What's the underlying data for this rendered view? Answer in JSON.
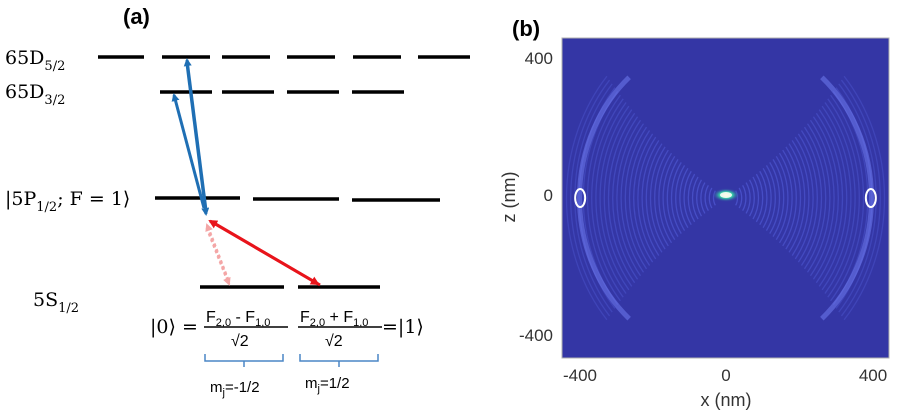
{
  "panel_a": {
    "label": "(a)",
    "levels": {
      "d52": {
        "base": "65D",
        "sub": "5/2"
      },
      "d32": {
        "base": "65D",
        "sub": "3/2"
      },
      "p12": {
        "pre": "|5P",
        "sub": "1/2",
        "post": "; F = 1⟩"
      },
      "s12": {
        "base": "5S",
        "sub": "1/2"
      }
    },
    "state0": {
      "ket": "|0⟩ =",
      "numerator": {
        "a": "F",
        "a_sub": "2,0",
        "op": " - ",
        "b": "F",
        "b_sub": "1,0"
      },
      "denominator": "√2"
    },
    "state1": {
      "ket": "=|1⟩",
      "numerator": {
        "a": "F",
        "a_sub": "2,0",
        "op": " + ",
        "b": "F",
        "b_sub": "1,0"
      },
      "denominator": "√2"
    },
    "mj_left": {
      "base": "m",
      "sub": "j",
      "rest": "=-1/2"
    },
    "mj_right": {
      "base": "m",
      "sub": "j",
      "rest": "=1/2"
    },
    "colors": {
      "blue_arrow": "#1f6fb4",
      "red_arrow": "#e8141b",
      "pink_arrow": "#f4a6a6",
      "bracket": "#4a86c5"
    }
  },
  "panel_b": {
    "label": "(b)",
    "colors": {
      "background": "#3436a5",
      "wave": "#5a66e6",
      "ring": "#ffffff"
    },
    "chart_data": {
      "type": "heatmap",
      "xlabel": "x (nm)",
      "ylabel": "z (nm)",
      "xlim": [
        -450,
        450
      ],
      "ylim": [
        -450,
        450
      ],
      "xticks": [
        "-400",
        "0",
        "400"
      ],
      "yticks": [
        "400",
        "0",
        "-400"
      ],
      "markers": [
        {
          "x": -400,
          "y": 0,
          "shape": "ring"
        },
        {
          "x": 400,
          "y": 0,
          "shape": "ring"
        }
      ]
    }
  }
}
